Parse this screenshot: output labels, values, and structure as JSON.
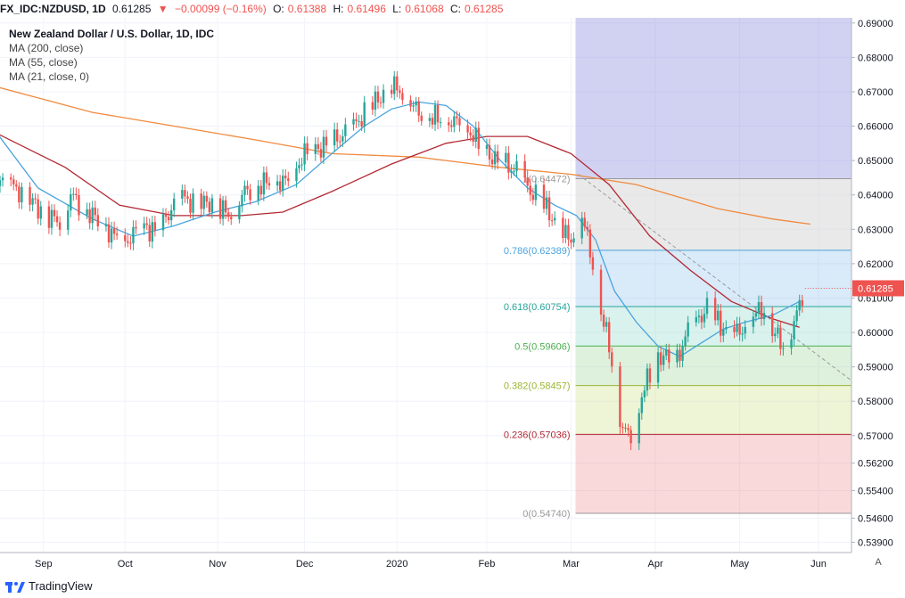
{
  "header": {
    "symbol": "FX_IDC:NZDUSD, 1D",
    "last": "0.61285",
    "change_arrow": "▼",
    "change": "−0.00099 (−0.16%)",
    "o_label": "O:",
    "o_value": "0.61388",
    "h_label": "H:",
    "h_value": "0.61496",
    "l_label": "L:",
    "l_value": "0.61068",
    "c_label": "C:",
    "c_value": "0.61285"
  },
  "legend": {
    "title": "New Zealand Dollar / U.S. Dollar, 1D, IDC",
    "ma200": "MA (200, close)",
    "ma55": "MA (55, close)",
    "ma21": "MA (21, close, 0)"
  },
  "footer": {
    "brand": "TradingView"
  },
  "scale_button": "A",
  "colors": {
    "up": "#26a69a",
    "down": "#ef5350",
    "ma200": "#f08a3e",
    "ma55": "#b22833",
    "ma21": "#4aa3df",
    "fib_top": "#7b7fdb"
  },
  "chart_data": {
    "type": "candlestick",
    "title": "New Zealand Dollar / U.S. Dollar, 1D, IDC",
    "y_axis": {
      "ticks": [
        "0.69000",
        "0.68000",
        "0.67000",
        "0.66000",
        "0.65000",
        "0.64000",
        "0.63000",
        "0.62000",
        "0.61000",
        "0.60000",
        "0.59000",
        "0.58000",
        "0.57000",
        "0.56200",
        "0.55400",
        "0.54600",
        "0.53900"
      ],
      "range": [
        0.536,
        0.6915
      ],
      "last_price_label": "0.61285"
    },
    "x_axis": {
      "labels": [
        "Sep",
        "Oct",
        "Nov",
        "Dec",
        "2020",
        "Feb",
        "Mar",
        "Apr",
        "May",
        "Jun"
      ],
      "label_days": [
        12,
        42,
        76,
        108,
        142,
        175,
        206,
        237,
        268,
        297
      ]
    },
    "fib_levels": [
      {
        "label": "1(0.64472)",
        "value": 0.64472
      },
      {
        "label": "0.786(0.62389)",
        "value": 0.62389
      },
      {
        "label": "0.618(0.60754)",
        "value": 0.60754
      },
      {
        "label": "0.5(0.59606)",
        "value": 0.59606
      },
      {
        "label": "0.382(0.58457)",
        "value": 0.58457
      },
      {
        "label": "0.236(0.57036)",
        "value": 0.57036
      },
      {
        "label": "0(0.54740)",
        "value": 0.5474
      }
    ],
    "price_path": [
      [
        -8,
        0.646
      ],
      [
        0,
        0.643
      ],
      [
        12,
        0.635
      ],
      [
        18,
        0.632
      ],
      [
        22,
        0.64
      ],
      [
        30,
        0.634
      ],
      [
        38,
        0.628
      ],
      [
        42,
        0.626
      ],
      [
        48,
        0.631
      ],
      [
        54,
        0.629
      ],
      [
        62,
        0.64
      ],
      [
        68,
        0.637
      ],
      [
        75,
        0.638
      ],
      [
        80,
        0.634
      ],
      [
        86,
        0.641
      ],
      [
        95,
        0.644
      ],
      [
        102,
        0.644
      ],
      [
        108,
        0.652
      ],
      [
        118,
        0.655
      ],
      [
        126,
        0.66
      ],
      [
        134,
        0.667
      ],
      [
        140,
        0.672
      ],
      [
        145,
        0.669
      ],
      [
        150,
        0.664
      ],
      [
        158,
        0.662
      ],
      [
        166,
        0.661
      ],
      [
        172,
        0.655
      ],
      [
        178,
        0.65
      ],
      [
        186,
        0.647
      ],
      [
        190,
        0.642
      ],
      [
        196,
        0.637
      ],
      [
        203,
        0.629
      ],
      [
        206,
        0.627
      ],
      [
        210,
        0.634
      ],
      [
        213,
        0.624
      ],
      [
        216,
        0.61
      ],
      [
        220,
        0.596
      ],
      [
        224,
        0.575
      ],
      [
        226,
        0.571
      ],
      [
        229,
        0.569
      ],
      [
        232,
        0.582
      ],
      [
        236,
        0.59
      ],
      [
        240,
        0.594
      ],
      [
        244,
        0.589
      ],
      [
        248,
        0.599
      ],
      [
        252,
        0.603
      ],
      [
        256,
        0.607
      ],
      [
        262,
        0.601
      ],
      [
        268,
        0.6
      ],
      [
        272,
        0.604
      ],
      [
        276,
        0.607
      ],
      [
        280,
        0.601
      ],
      [
        284,
        0.596
      ],
      [
        288,
        0.603
      ],
      [
        292,
        0.613
      ]
    ],
    "ma200": [
      [
        -8,
        0.672
      ],
      [
        30,
        0.664
      ],
      [
        60,
        0.66
      ],
      [
        90,
        0.656
      ],
      [
        118,
        0.652
      ],
      [
        150,
        0.651
      ],
      [
        180,
        0.648
      ],
      [
        206,
        0.646
      ],
      [
        230,
        0.643
      ],
      [
        260,
        0.636
      ],
      [
        280,
        0.633
      ],
      [
        294,
        0.6315
      ]
    ],
    "ma55": [
      [
        -8,
        0.659
      ],
      [
        20,
        0.648
      ],
      [
        40,
        0.637
      ],
      [
        60,
        0.634
      ],
      [
        85,
        0.634
      ],
      [
        100,
        0.635
      ],
      [
        118,
        0.641
      ],
      [
        140,
        0.649
      ],
      [
        160,
        0.655
      ],
      [
        175,
        0.657
      ],
      [
        190,
        0.657
      ],
      [
        206,
        0.652
      ],
      [
        220,
        0.643
      ],
      [
        235,
        0.628
      ],
      [
        250,
        0.618
      ],
      [
        265,
        0.609
      ],
      [
        280,
        0.604
      ],
      [
        290,
        0.6015
      ]
    ],
    "ma21": [
      [
        -8,
        0.661
      ],
      [
        10,
        0.642
      ],
      [
        30,
        0.633
      ],
      [
        45,
        0.628
      ],
      [
        60,
        0.631
      ],
      [
        75,
        0.635
      ],
      [
        90,
        0.638
      ],
      [
        105,
        0.643
      ],
      [
        118,
        0.652
      ],
      [
        130,
        0.66
      ],
      [
        140,
        0.665
      ],
      [
        150,
        0.667
      ],
      [
        160,
        0.666
      ],
      [
        170,
        0.66
      ],
      [
        180,
        0.65
      ],
      [
        190,
        0.642
      ],
      [
        200,
        0.637
      ],
      [
        208,
        0.634
      ],
      [
        215,
        0.627
      ],
      [
        222,
        0.612
      ],
      [
        230,
        0.603
      ],
      [
        238,
        0.596
      ],
      [
        246,
        0.593
      ],
      [
        254,
        0.597
      ],
      [
        262,
        0.601
      ],
      [
        270,
        0.603
      ],
      [
        280,
        0.605
      ],
      [
        290,
        0.609
      ]
    ]
  }
}
